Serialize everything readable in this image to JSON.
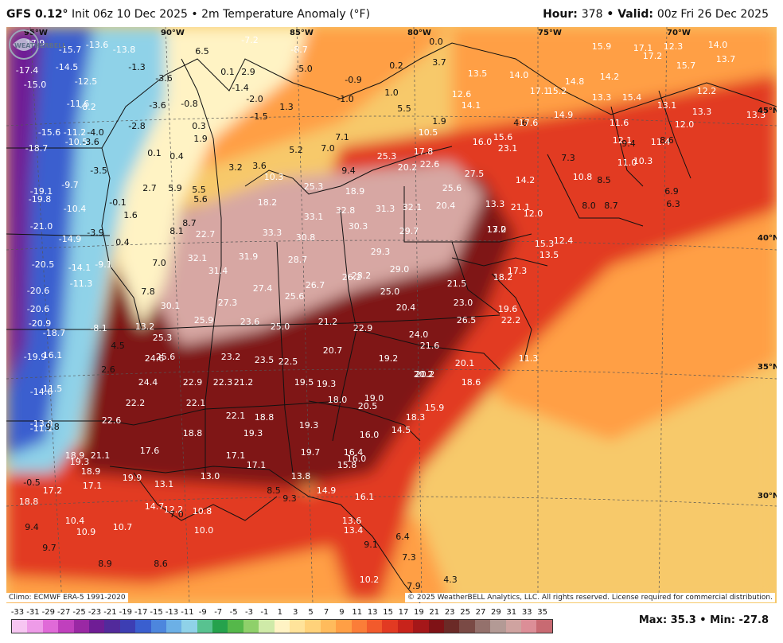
{
  "header": {
    "model": "GFS 0.12°",
    "init": "Init 06z 10 Dec 2025",
    "separator": "•",
    "product": "2m Temperature Anomaly (°F)",
    "hour_label": "Hour:",
    "hour_value": "378",
    "valid_label": "Valid:",
    "valid_value": "00z Fri 26 Dec 2025"
  },
  "graticule": {
    "lon_labels": [
      "95°W",
      "90°W",
      "85°W",
      "80°W",
      "75°W",
      "70°W"
    ],
    "lat_labels": [
      "45°N",
      "40°N",
      "35°N",
      "30°N"
    ]
  },
  "map_values": [
    "-17.9",
    "-15.7",
    "-13.6",
    "-13.8",
    "-7.2",
    "-8.7",
    "0.0",
    "15.9",
    "17.1",
    "12.3",
    "14.0",
    "-17.4",
    "-14.5",
    "-1.3",
    "6.5",
    "0.1",
    "2.9",
    "-5.0",
    "0.2",
    "3.7",
    "17.2",
    "15.7",
    "13.7",
    "-15.0",
    "-12.5",
    "-3.6",
    "-1.4",
    "-0.9",
    "13.5",
    "14.0",
    "14.8",
    "14.2",
    "-11.6",
    "-8.2",
    "-3.6",
    "-0.8",
    "-2.0",
    "1.0",
    "12.6",
    "17.1",
    "15.2",
    "13.3",
    "15.4",
    "12.2",
    "-1.5",
    "1.3",
    "-1.0",
    "5.5",
    "14.1",
    "13.1",
    "13.3",
    "-15.6",
    "-11.2",
    "-4.0",
    "-2.8",
    "0.3",
    "1.9",
    "4.6",
    "14.9",
    "11.6",
    "13.3",
    "12.0",
    "-18.7",
    "-10.5",
    "-3.6",
    "0.1",
    "0.4",
    "1.9",
    "5.2",
    "7.0",
    "7.1",
    "10.5",
    "17.6",
    "12.1",
    "11.4",
    "3.2",
    "3.6",
    "16.0",
    "15.6",
    "9.4",
    "8.6",
    "-3.5",
    "17.8",
    "25.3",
    "23.1",
    "7.3",
    "11.0",
    "10.3",
    "-19.1",
    "-9.7",
    "2.7",
    "5.9",
    "5.5",
    "10.3",
    "9.4",
    "20.2",
    "22.6",
    "27.5",
    "14.2",
    "10.8",
    "-19.8",
    "-10.4",
    "-0.1",
    "5.6",
    "25.3",
    "18.9",
    "25.6",
    "21.1",
    "8.5",
    "6.9",
    "1.6",
    "18.2",
    "33.1",
    "32.8",
    "31.3",
    "32.1",
    "20.4",
    "13.3",
    "8.0",
    "8.7",
    "6.3",
    "-21.0",
    "-14.9",
    "-3.9",
    "8.1",
    "8.7",
    "22.7",
    "33.3",
    "30.3",
    "29.7",
    "13.0",
    "12.0",
    "0.4",
    "30.8",
    "17.2",
    "15.3",
    "12.4",
    "-20.5",
    "-14.1",
    "-9.1",
    "7.0",
    "32.1",
    "31.9",
    "28.7",
    "29.3",
    "13.5",
    "-11.3",
    "31.4",
    "28.2",
    "29.0",
    "18.2",
    "17.3",
    "-20.6",
    "7.8",
    "26.2",
    "26.7",
    "21.5",
    "-20.6",
    "30.1",
    "27.3",
    "27.4",
    "25.6",
    "25.0",
    "23.0",
    "19.6",
    "-20.9",
    "-8.1",
    "25.9",
    "23.6",
    "25.0",
    "21.2",
    "22.9",
    "20.4",
    "26.5",
    "22.2",
    "-18.7",
    "13.2",
    "25.3",
    "24.0",
    "21.6",
    "-19.9",
    "16.1",
    "4.5",
    "23.2",
    "23.5",
    "20.7",
    "19.2",
    "11.3",
    "2.6",
    "24.6",
    "25.6",
    "22.5",
    "20.2",
    "20.1",
    "-14.6",
    "11.5",
    "24.4",
    "22.9",
    "22.3",
    "21.2",
    "19.5",
    "19.3",
    "20.2",
    "18.6",
    "22.2",
    "22.1",
    "19.0",
    "18.0",
    "20.5",
    "15.9",
    "-13.0",
    "-11.1",
    "9.8",
    "22.6",
    "22.1",
    "18.8",
    "19.3",
    "18.3",
    "14.5",
    "18.8",
    "19.3",
    "16.0",
    "18.9",
    "21.1",
    "17.6",
    "17.1",
    "19.7",
    "16.4",
    "16.0",
    "19.3",
    "18.9",
    "17.1",
    "15.8",
    "-0.5",
    "17.2",
    "17.1",
    "19.9",
    "13.1",
    "13.0",
    "13.8",
    "14.9",
    "8.5",
    "9.3",
    "16.1",
    "18.8",
    "14.7",
    "12.2",
    "7.0",
    "10.8",
    "13.6",
    "10.4",
    "10.9",
    "10.7",
    "10.0",
    "9.4",
    "13.4",
    "9.1",
    "9.7",
    "8.9",
    "8.6",
    "6.4",
    "7.3",
    "4.3",
    "10.2",
    "7.9"
  ],
  "footer": {
    "climo": "Climo: ECMWF ERA-5 1991-2020",
    "copyright": "© 2025 WeatherBELL Analytics, LLC. All rights reserved. License required for commercial distribution.",
    "logo_text": "WEATHERBELL"
  },
  "scale": {
    "labels": [
      "-33",
      "-31",
      "-29",
      "-27",
      "-25",
      "-23",
      "-21",
      "-19",
      "-17",
      "-15",
      "-13",
      "-11",
      "-9",
      "-7",
      "-5",
      "-3",
      "-1",
      "1",
      "3",
      "5",
      "7",
      "9",
      "11",
      "13",
      "15",
      "17",
      "19",
      "21",
      "23",
      "25",
      "27",
      "29",
      "31",
      "33",
      "35"
    ],
    "colors": [
      "#f7c6f2",
      "#ee9be8",
      "#e06ad8",
      "#c040bd",
      "#9a28a4",
      "#6f1d95",
      "#522a9b",
      "#3d3eb3",
      "#3a5fcf",
      "#4d86dd",
      "#6cb0e6",
      "#8fd2e8",
      "#58c290",
      "#25a24c",
      "#55b84a",
      "#8fd06a",
      "#cfeaa8",
      "#fff3c4",
      "#ffe39a",
      "#ffd27a",
      "#ffbb5c",
      "#ff9f45",
      "#fb7d38",
      "#f25a2c",
      "#e23a22",
      "#c8231b",
      "#a51719",
      "#7f1216",
      "#6b2a27",
      "#7a4a45",
      "#94716c",
      "#b39a95",
      "#cfa3a0",
      "#dc8e97",
      "#c86a72"
    ]
  },
  "stats": {
    "max_label": "Max:",
    "max_value": "35.3",
    "min_label": "Min:",
    "min_value": "-27.8",
    "separator": "•"
  },
  "colors": {
    "cold_extreme": "#6f1d95",
    "cold": "#3a5fcf",
    "cool": "#8fd2e8",
    "neutral": "#fff3c4",
    "warm": "#ff9f45",
    "hot": "#e23a22",
    "very_hot": "#7f1216",
    "extreme": "#d7a7a3",
    "boundaries": "#111111"
  }
}
